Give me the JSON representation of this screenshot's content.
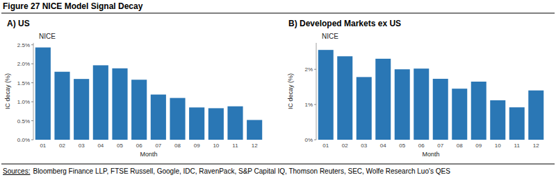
{
  "figure_title": "Figure 27 NICE Model Signal Decay",
  "sources_label": "Sources:",
  "sources": "Bloomberg Finance LLP, FTSE Russell, Google, IDC, RavenPack, S&P Capital IQ, Thomson Reuters, SEC, Wolfe Research Luo's QES",
  "chart_data": [
    {
      "type": "bar",
      "title": "A) US",
      "subtitle": "NICE",
      "x_label": "Month",
      "y_label": "IC decay (%)",
      "categories": [
        "01",
        "02",
        "03",
        "04",
        "05",
        "06",
        "07",
        "08",
        "09",
        "10",
        "11",
        "12"
      ],
      "values": [
        2.43,
        1.79,
        1.6,
        1.96,
        1.88,
        1.58,
        1.19,
        1.1,
        0.85,
        0.83,
        0.88,
        0.52
      ],
      "color": "#2a77b5",
      "ylim": [
        0,
        2.55
      ],
      "yticks": [
        {
          "value": 0,
          "label": "0.0%"
        },
        {
          "value": 0.5,
          "label": "0.5%"
        },
        {
          "value": 1,
          "label": "1.0%"
        },
        {
          "value": 1.5,
          "label": "1.5%"
        },
        {
          "value": 2,
          "label": "2.0%"
        },
        {
          "value": 2.5,
          "label": "2.5%"
        }
      ],
      "grid": false
    },
    {
      "type": "bar",
      "title": "B) Developed Markets ex US",
      "subtitle": "NICE",
      "x_label": "Month",
      "y_label": "IC decay (%)",
      "categories": [
        "01",
        "02",
        "03",
        "04",
        "05",
        "06",
        "07",
        "08",
        "09",
        "10",
        "11",
        "12"
      ],
      "values": [
        2.55,
        2.37,
        1.78,
        2.3,
        2.0,
        2.02,
        1.73,
        1.45,
        1.65,
        1.12,
        0.92,
        1.4
      ],
      "color": "#2a77b5",
      "ylim": [
        0,
        2.75
      ],
      "yticks": [
        {
          "value": 0,
          "label": "0%"
        },
        {
          "value": 1,
          "label": "1%"
        },
        {
          "value": 2,
          "label": "2%"
        }
      ],
      "grid": false
    }
  ]
}
